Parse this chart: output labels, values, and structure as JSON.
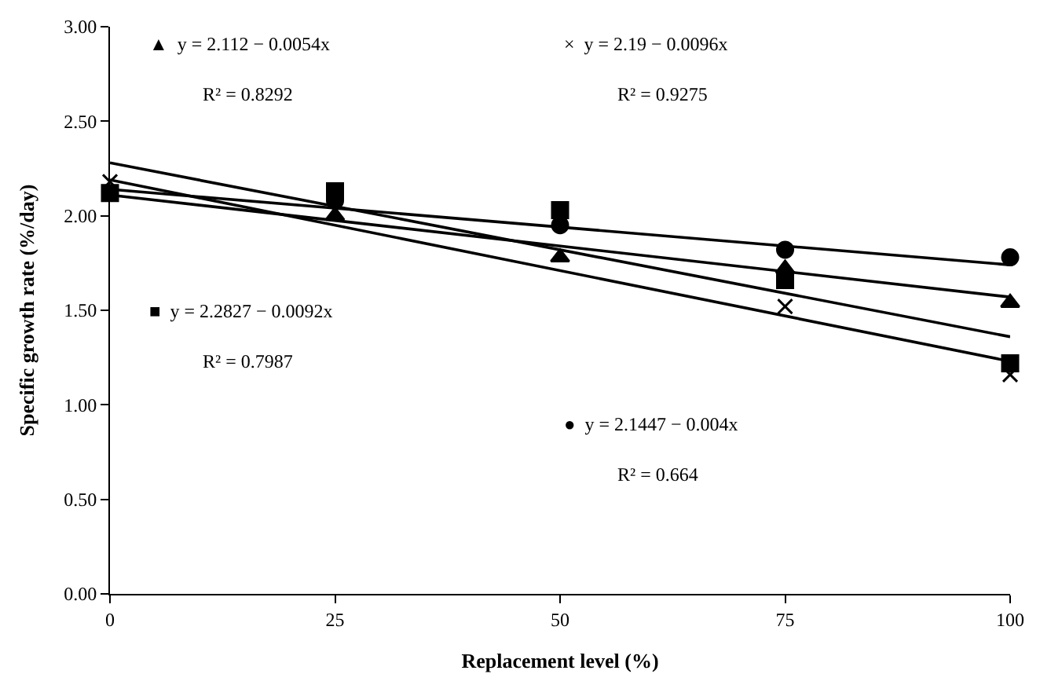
{
  "chart_data": {
    "type": "scatter",
    "xlabel": "Replacement level (%)",
    "ylabel": "Specific growth rate (%/day)",
    "x": [
      0,
      25,
      50,
      75,
      100
    ],
    "series": [
      {
        "color": "#000000",
        "marker": "triangle",
        "values": [
          null,
          2.0,
          1.78,
          1.72,
          1.54
        ]
      },
      {
        "color": "#000000",
        "marker": "cross",
        "values": [
          2.18,
          null,
          null,
          1.52,
          1.16
        ]
      },
      {
        "color": "#000000",
        "marker": "square",
        "values": [
          2.12,
          2.13,
          2.03,
          1.66,
          1.22
        ]
      },
      {
        "color": "#000000",
        "marker": "circle",
        "values": [
          null,
          2.08,
          1.95,
          1.82,
          1.78
        ]
      },
      {
        "type": "line",
        "color": "#000000",
        "marker": "none",
        "values": [
          2.11,
          null,
          null,
          null,
          1.57
        ]
      },
      {
        "type": "line",
        "color": "#000000",
        "marker": "none",
        "values": [
          2.19,
          null,
          null,
          null,
          1.23
        ]
      },
      {
        "type": "line",
        "color": "#000000",
        "marker": "none",
        "values": [
          2.28,
          null,
          null,
          null,
          1.36
        ]
      },
      {
        "type": "line",
        "color": "#000000",
        "marker": "none",
        "values": [
          2.14,
          null,
          null,
          null,
          1.74
        ]
      }
    ],
    "xlim": [
      0,
      100
    ],
    "xticks": [
      0,
      25,
      50,
      75,
      100
    ],
    "ylim": [
      0,
      3
    ],
    "yticks": [
      {
        "value": 0,
        "label": "0.00"
      },
      {
        "value": 0.5,
        "label": "0.50"
      },
      {
        "value": 1,
        "label": "1.00"
      },
      {
        "value": 1.5,
        "label": "1.50"
      },
      {
        "value": 2,
        "label": "2.00"
      },
      {
        "value": 2.5,
        "label": "2.50"
      },
      {
        "value": 3,
        "label": "3.00"
      }
    ],
    "annotations": [
      "▲  y = 2.112 − 0.0054x",
      "R² = 0.8292",
      "×  y = 2.19 − 0.0096x",
      "R² = 0.9275",
      "■  y = 2.2827 − 0.0092x",
      "R² = 0.7987",
      "●  y = 2.1447 − 0.004x",
      "R² = 0.664"
    ]
  }
}
